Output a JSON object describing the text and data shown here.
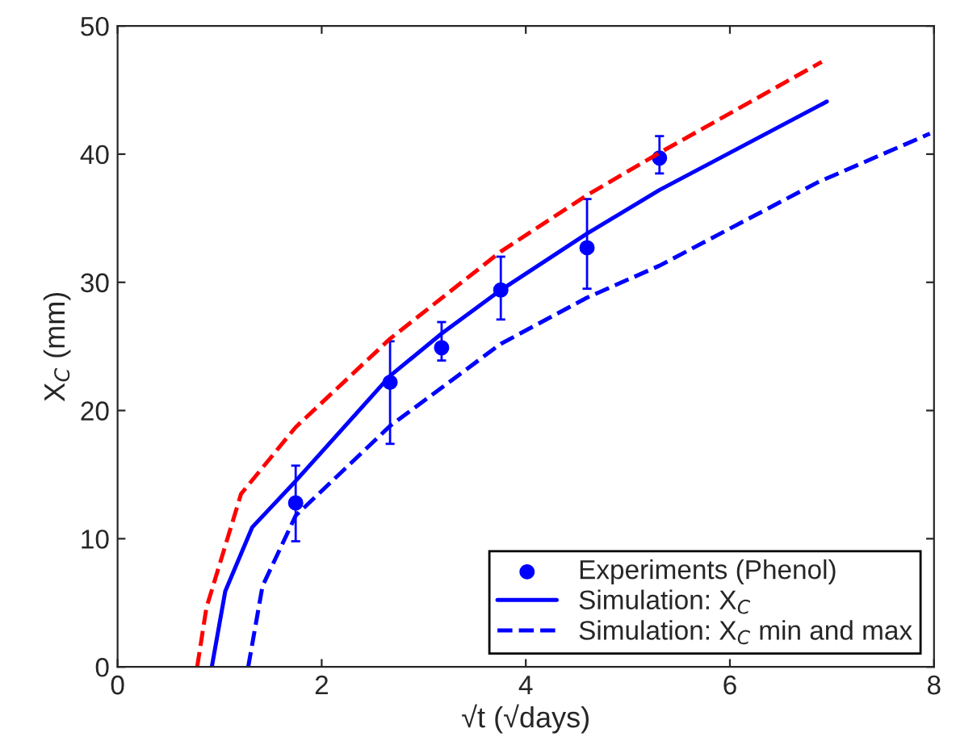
{
  "chart_data": {
    "type": "line",
    "xlabel": "√t (√days)",
    "ylabel": "X$_{C}$ (mm)",
    "xlim": [
      0,
      8
    ],
    "ylim": [
      0,
      50
    ],
    "xticks": [
      0,
      2,
      4,
      6,
      8
    ],
    "yticks": [
      0,
      10,
      20,
      30,
      40,
      50
    ],
    "grid": false,
    "legend": "bottom right",
    "series": [
      {
        "name": "Experiments (Phenol)",
        "type": "scatter",
        "marker": "circle",
        "color": "#0000ff",
        "x": [
          1.745,
          2.67,
          3.175,
          3.755,
          4.6,
          5.31
        ],
        "values": [
          12.8,
          22.2,
          24.9,
          29.4,
          32.7,
          39.7
        ],
        "errors": [
          [
            9.8,
            15.7
          ],
          [
            17.4,
            25.4
          ],
          [
            23.9,
            26.9
          ],
          [
            27.1,
            32.0
          ],
          [
            29.5,
            36.5
          ],
          [
            38.5,
            41.4
          ]
        ]
      },
      {
        "name": "Simulation: X$_{C}$",
        "line_style": "solid",
        "color": "#0000ff",
        "x": [
          0.923,
          1.055,
          1.32,
          1.745,
          2.67,
          3.175,
          3.755,
          4.6,
          5.31,
          6.95
        ],
        "values": [
          0,
          5.9,
          10.9,
          14.5,
          22.7,
          26.0,
          29.4,
          33.8,
          37.2,
          44.1
        ]
      },
      {
        "line_style": "dashed",
        "color": "#ff0000",
        "x": [
          0.78,
          0.87,
          1.21,
          1.745,
          2.67,
          3.755,
          4.6,
          5.31,
          6.9
        ],
        "values": [
          0,
          4.6,
          13.5,
          18.7,
          25.6,
          32.4,
          36.8,
          40.1,
          47.2
        ]
      },
      {
        "name": "Simulation: X$_{C}$ min and max",
        "line_style": "dashed",
        "color": "#0000ff",
        "x": [
          1.28,
          1.42,
          1.745,
          2.67,
          3.755,
          4.6,
          5.31,
          6.86,
          7.96
        ],
        "values": [
          0,
          6.3,
          11.8,
          18.8,
          25.2,
          28.8,
          31.3,
          37.8,
          41.6
        ]
      }
    ]
  }
}
